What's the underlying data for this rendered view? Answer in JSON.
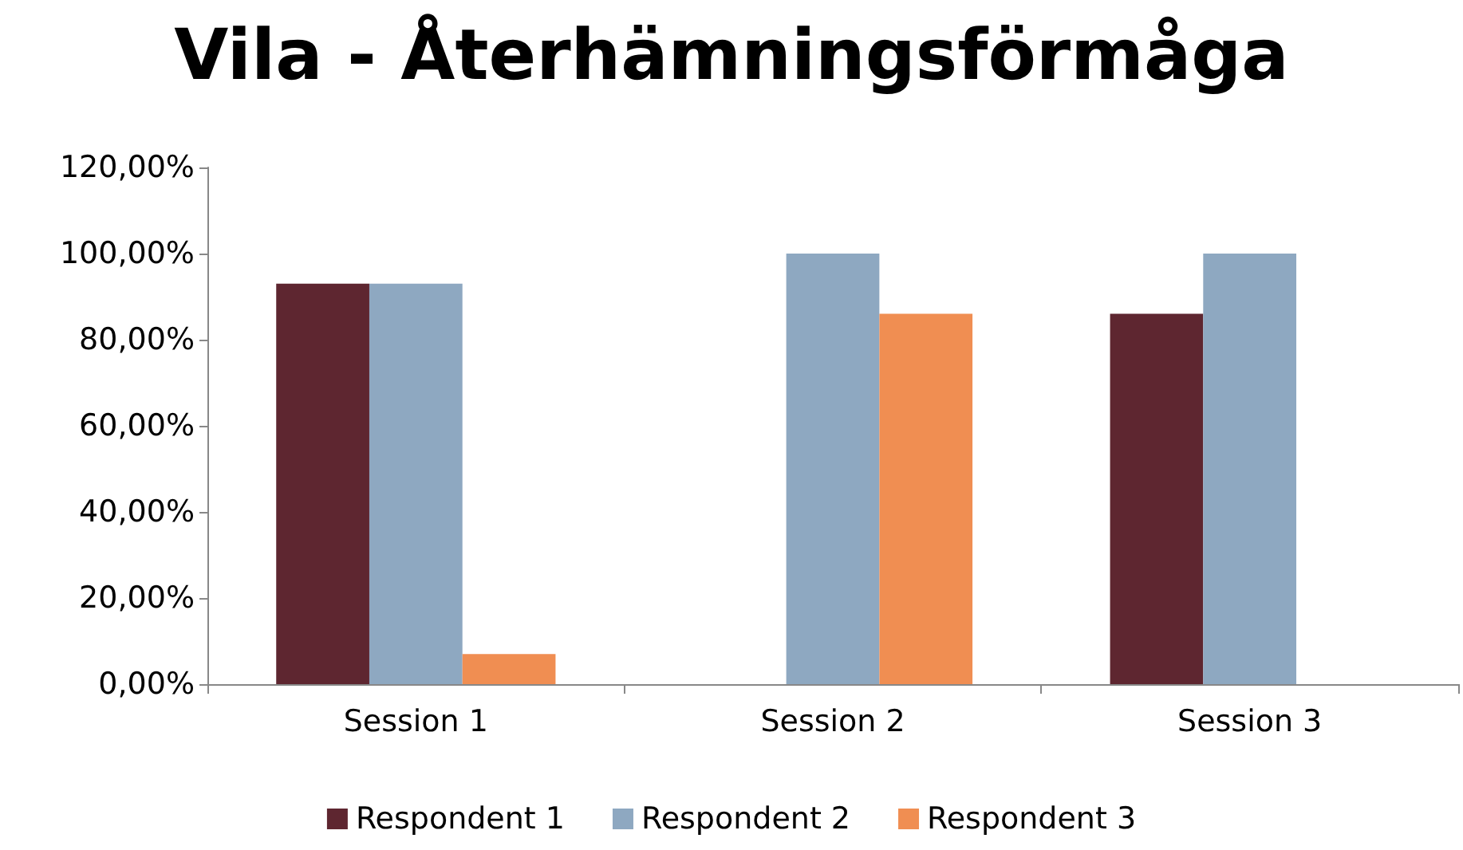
{
  "chart_data": {
    "type": "bar",
    "title": "Vila - Återhämningsförmåga",
    "categories": [
      "Session 1",
      "Session 2",
      "Session 3"
    ],
    "series": [
      {
        "name": "Respondent 1",
        "color": "#5e2630",
        "values": [
          93,
          0,
          86
        ]
      },
      {
        "name": "Respondent 2",
        "color": "#8ea8c1",
        "values": [
          93,
          100,
          100
        ]
      },
      {
        "name": "Respondent 3",
        "color": "#f08e52",
        "values": [
          7,
          86,
          0
        ]
      }
    ],
    "ylim": [
      0,
      120
    ],
    "yticks": [
      {
        "value": 0,
        "label": "0,00%"
      },
      {
        "value": 20,
        "label": "20,00%"
      },
      {
        "value": 40,
        "label": "40,00%"
      },
      {
        "value": 60,
        "label": "60,00%"
      },
      {
        "value": 80,
        "label": "80,00%"
      },
      {
        "value": 100,
        "label": "100,00%"
      },
      {
        "value": 120,
        "label": "120,00%"
      }
    ],
    "grid": false,
    "legend": "bottom"
  }
}
